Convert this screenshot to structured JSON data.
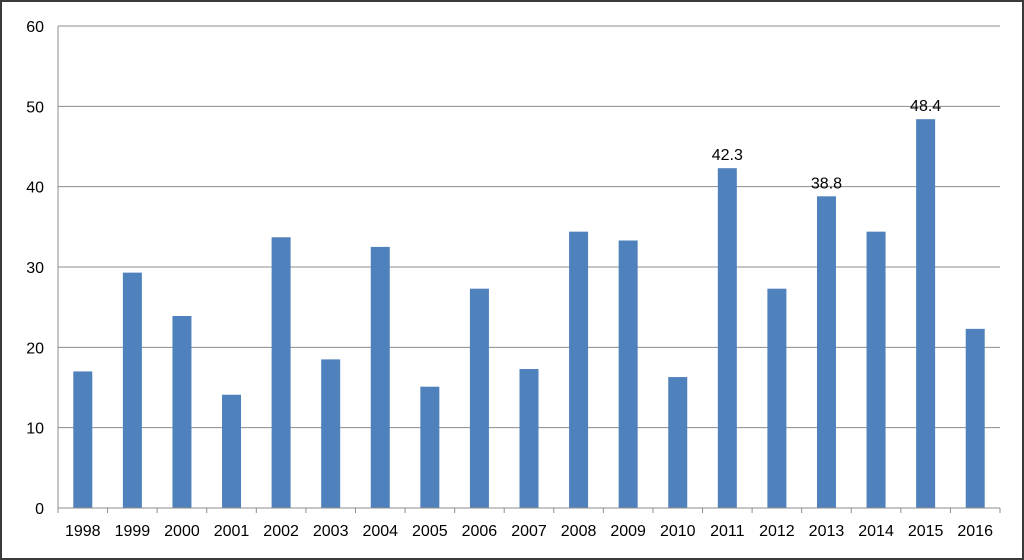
{
  "chart_data": {
    "type": "bar",
    "title": "",
    "xlabel": "",
    "ylabel": "",
    "ylim": [
      0,
      60
    ],
    "yticks": [
      0,
      10,
      20,
      30,
      40,
      50,
      60
    ],
    "grid": true,
    "legend": "none",
    "bar_color": "#4f81bd",
    "grid_color": "#8c8c8c",
    "categories": [
      "1998",
      "1999",
      "2000",
      "2001",
      "2002",
      "2003",
      "2004",
      "2005",
      "2006",
      "2007",
      "2008",
      "2009",
      "2010",
      "2011",
      "2012",
      "2013",
      "2014",
      "2015",
      "2016"
    ],
    "values": [
      17.0,
      29.3,
      23.9,
      14.1,
      33.7,
      18.5,
      32.5,
      15.1,
      27.3,
      17.3,
      34.4,
      33.3,
      16.3,
      42.3,
      27.3,
      38.8,
      34.4,
      48.4,
      22.3
    ],
    "data_labels": [
      {
        "category": "2011",
        "text": "42.3"
      },
      {
        "category": "2013",
        "text": "38.8"
      },
      {
        "category": "2015",
        "text": "48.4"
      }
    ]
  }
}
